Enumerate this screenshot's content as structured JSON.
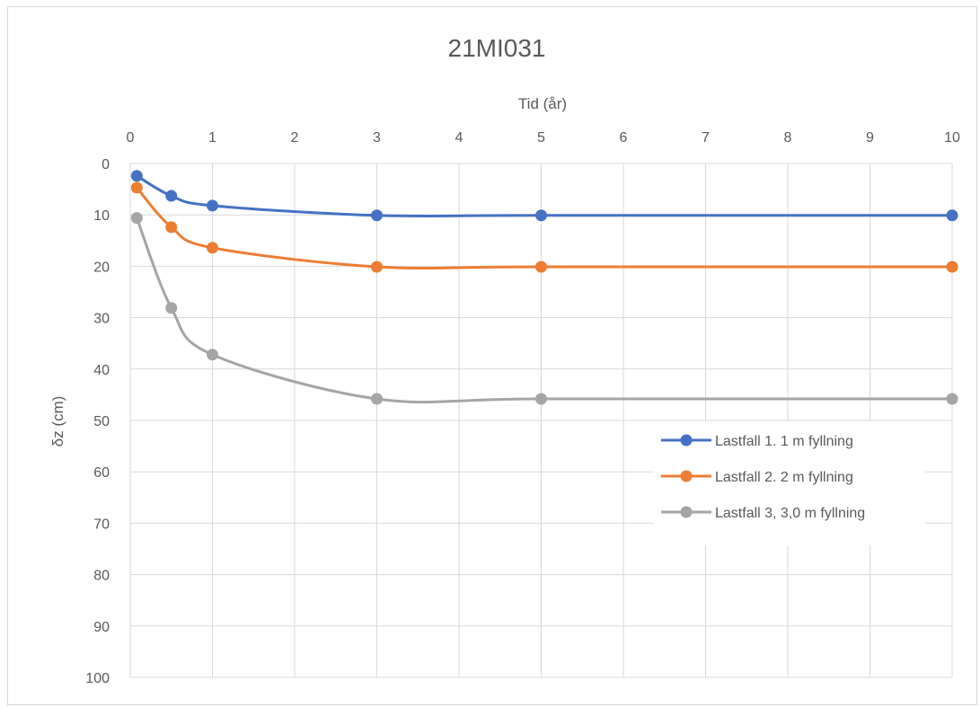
{
  "chart_data": {
    "type": "line",
    "title": "21MI031",
    "xlabel": "Tid (år)",
    "ylabel": "δz (cm)",
    "x_axis_position": "top",
    "y_axis_reversed": true,
    "xlim": [
      0,
      10
    ],
    "ylim": [
      0,
      100
    ],
    "x_ticks": [
      0,
      1,
      2,
      3,
      4,
      5,
      6,
      7,
      8,
      9,
      10
    ],
    "y_ticks": [
      0,
      10,
      20,
      30,
      40,
      50,
      60,
      70,
      80,
      90,
      100
    ],
    "grid": true,
    "smoothed": true,
    "legend_position": "right",
    "x": [
      0.08,
      0.5,
      1,
      3,
      5,
      10
    ],
    "series": [
      {
        "name": "Lastfall 1. 1 m fyllning",
        "color": "#4472C4",
        "values": [
          2.4,
          6.3,
          8.2,
          10.1,
          10.1,
          10.1
        ]
      },
      {
        "name": "Lastfall 2. 2 m fyllning",
        "color": "#ED7D31",
        "values": [
          4.7,
          12.4,
          16.4,
          20.1,
          20.1,
          20.1
        ]
      },
      {
        "name": "Lastfall 3, 3,0 m fyllning",
        "color": "#A5A5A5",
        "values": [
          10.6,
          28.1,
          37.2,
          45.8,
          45.8,
          45.8
        ]
      }
    ]
  }
}
